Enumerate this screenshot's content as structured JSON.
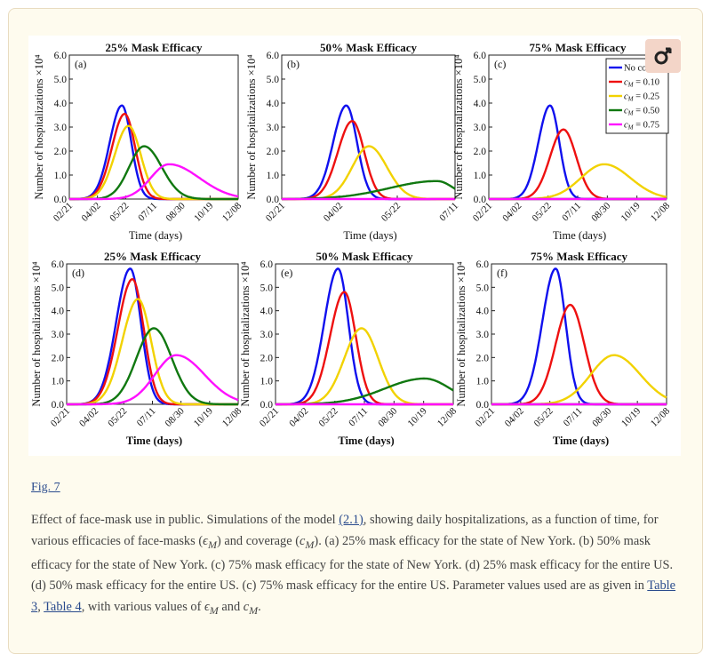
{
  "figure_link": "Fig. 7",
  "caption": {
    "p1": "Effect of face-mask use in public. Simulations of the model ",
    "ref_model": "(2.1)",
    "p2": ", showing daily hospitalizations, as a function of time, for various efficacies of face-masks (",
    "sym_eps": "ϵ",
    "sub_M1": "M",
    "p3": ") and coverage (",
    "sym_c": "c",
    "sub_M2": "M",
    "p4": "). (a) 25% mask efficacy for the state of New York. (b) 50% mask efficacy for the state of New York. (c) 75% mask efficacy for the state of New York. (d) 25% mask efficacy for the entire US. (d) 50% mask efficacy for the entire US. (c) 75% mask efficacy for the entire US. Parameter values used are as given in ",
    "ref_table3": "Table 3",
    "sep": ", ",
    "ref_table4": "Table 4",
    "p5": ", with various values of ",
    "sym_eps2": "ϵ",
    "sub_M3": "M",
    "p6": " and ",
    "sym_c2": "c",
    "sub_M4": "M",
    "p7": "."
  },
  "colors": {
    "no_coverage": "#1010ee",
    "cM_0.10": "#ee1010",
    "cM_0.25": "#f2d200",
    "cM_0.50": "#107810",
    "cM_0.75": "#ff10ff"
  },
  "legend": {
    "entries": [
      "No cover",
      "c_M = 0.10",
      "c_M = 0.25",
      "c_M = 0.50",
      "c_M = 0.75"
    ],
    "display": [
      {
        "label": "No cover",
        "color": "#1010ee",
        "math": false
      },
      {
        "label": "= 0.10",
        "color": "#ee1010",
        "math": true
      },
      {
        "label": "= 0.25",
        "color": "#f2d200",
        "math": true
      },
      {
        "label": "= 0.50",
        "color": "#107810",
        "math": true
      },
      {
        "label": "= 0.75",
        "color": "#ff10ff",
        "math": true
      }
    ]
  },
  "chart_data": [
    {
      "panel": "(a)",
      "type": "line",
      "title": "25% Mask Efficacy",
      "xlabel": "Time (days)",
      "ylabel": "Number of hospitalizations ×10⁴",
      "xticks": [
        "02/21",
        "04/02",
        "05/22",
        "07/11",
        "08/30",
        "10/19",
        "12/08"
      ],
      "xlim": [
        0,
        305
      ],
      "ylim": [
        0,
        6
      ],
      "yticks": [
        "0.0",
        "1.0",
        "2.0",
        "3.0",
        "4.0",
        "5.0",
        "6.0"
      ],
      "x_units": "days since 02/21",
      "series": [
        {
          "name": "No cover",
          "peak_day": 95,
          "peak": 3.9,
          "rise_width": 22,
          "fall_width": 17
        },
        {
          "name": "c_M = 0.10",
          "peak_day": 100,
          "peak": 3.55,
          "rise_width": 23,
          "fall_width": 19
        },
        {
          "name": "c_M = 0.25",
          "peak_day": 107,
          "peak": 3.05,
          "rise_width": 25,
          "fall_width": 22
        },
        {
          "name": "c_M = 0.50",
          "peak_day": 135,
          "peak": 2.2,
          "rise_width": 27,
          "fall_width": 32
        },
        {
          "name": "c_M = 0.75",
          "peak_day": 180,
          "peak": 1.45,
          "rise_width": 33,
          "fall_width": 55
        }
      ]
    },
    {
      "panel": "(b)",
      "type": "line",
      "title": "50% Mask Efficacy",
      "xlabel": "Time (days)",
      "ylabel": "Number of hospitalizations ×10⁴",
      "xticks": [
        "02/21",
        "04/02",
        "05/22",
        "07/11"
      ],
      "xlim": [
        0,
        145
      ],
      "ylim": [
        0,
        6
      ],
      "yticks": [
        "0.0",
        "1.0",
        "2.0",
        "3.0",
        "4.0",
        "5.0",
        "6.0"
      ],
      "x_units": "days since 02/21",
      "series": [
        {
          "name": "No cover",
          "peak_day": 54,
          "peak": 3.9,
          "rise_width": 11,
          "fall_width": 9
        },
        {
          "name": "c_M = 0.10",
          "peak_day": 59,
          "peak": 3.25,
          "rise_width": 12,
          "fall_width": 10
        },
        {
          "name": "c_M = 0.25",
          "peak_day": 73,
          "peak": 2.2,
          "rise_width": 14,
          "fall_width": 15
        },
        {
          "name": "c_M = 0.50",
          "peak_day": 130,
          "peak": 0.75,
          "rise_width": 40,
          "fall_width": 14
        },
        {
          "name": "c_M = 0.75",
          "peak_day": 0,
          "peak": 0.0,
          "rise_width": 10,
          "fall_width": 10
        }
      ]
    },
    {
      "panel": "(c)",
      "type": "line",
      "title": "75% Mask Efficacy",
      "xlabel": "Time (days)",
      "ylabel": "Number of hospitalizations ×10⁴",
      "xticks": [
        "02/21",
        "04/02",
        "05/22",
        "07/11",
        "08/30",
        "10/19",
        "12/08"
      ],
      "xlim": [
        0,
        305
      ],
      "ylim": [
        0,
        6
      ],
      "yticks": [
        "0.0",
        "1.0",
        "2.0",
        "3.0",
        "4.0",
        "5.0",
        "6.0"
      ],
      "x_units": "days since 02/21",
      "series": [
        {
          "name": "No cover",
          "peak_day": 105,
          "peak": 3.9,
          "rise_width": 20,
          "fall_width": 16
        },
        {
          "name": "c_M = 0.10",
          "peak_day": 128,
          "peak": 2.9,
          "rise_width": 23,
          "fall_width": 22
        },
        {
          "name": "c_M = 0.25",
          "peak_day": 198,
          "peak": 1.45,
          "rise_width": 40,
          "fall_width": 45
        },
        {
          "name": "c_M = 0.50",
          "peak_day": 0,
          "peak": 0.0,
          "rise_width": 10,
          "fall_width": 10
        },
        {
          "name": "c_M = 0.75",
          "peak_day": 0,
          "peak": 0.0,
          "rise_width": 10,
          "fall_width": 10
        }
      ]
    },
    {
      "panel": "(d)",
      "type": "line",
      "title": "25% Mask Efficacy",
      "xlabel": "Time (days)",
      "ylabel": "Number of hospitalizations ×10⁴",
      "xticks": [
        "02/21",
        "04/02",
        "05/22",
        "07/11",
        "08/30",
        "10/19",
        "12/08"
      ],
      "xlim": [
        0,
        305
      ],
      "ylim": [
        0,
        6
      ],
      "yticks": [
        "0.0",
        "1.0",
        "2.0",
        "3.0",
        "4.0",
        "5.0",
        "6.0"
      ],
      "x_units": "days since 02/21",
      "series": [
        {
          "name": "No cover",
          "peak_day": 113,
          "peak": 5.8,
          "rise_width": 25,
          "fall_width": 19
        },
        {
          "name": "c_M = 0.10",
          "peak_day": 117,
          "peak": 5.35,
          "rise_width": 26,
          "fall_width": 20
        },
        {
          "name": "c_M = 0.25",
          "peak_day": 127,
          "peak": 4.5,
          "rise_width": 28,
          "fall_width": 23
        },
        {
          "name": "c_M = 0.50",
          "peak_day": 155,
          "peak": 3.25,
          "rise_width": 31,
          "fall_width": 32
        },
        {
          "name": "c_M = 0.75",
          "peak_day": 195,
          "peak": 2.1,
          "rise_width": 38,
          "fall_width": 50
        }
      ]
    },
    {
      "panel": "(e)",
      "type": "line",
      "title": "50% Mask Efficacy",
      "xlabel": "Time (days)",
      "ylabel": "Number of hospitalizations ×10⁴",
      "xticks": [
        "02/21",
        "04/02",
        "05/22",
        "07/11",
        "08/30",
        "10/19",
        "12/08"
      ],
      "xlim": [
        0,
        310
      ],
      "ylim": [
        0,
        6
      ],
      "yticks": [
        "0.0",
        "1.0",
        "2.0",
        "3.0",
        "4.0",
        "5.0",
        "6.0"
      ],
      "x_units": "days since 02/21",
      "series": [
        {
          "name": "No cover",
          "peak_day": 109,
          "peak": 5.8,
          "rise_width": 24,
          "fall_width": 18
        },
        {
          "name": "c_M = 0.10",
          "peak_day": 120,
          "peak": 4.8,
          "rise_width": 25,
          "fall_width": 20
        },
        {
          "name": "c_M = 0.25",
          "peak_day": 150,
          "peak": 3.25,
          "rise_width": 30,
          "fall_width": 29
        },
        {
          "name": "c_M = 0.50",
          "peak_day": 260,
          "peak": 1.1,
          "rise_width": 70,
          "fall_width": 45
        },
        {
          "name": "c_M = 0.75",
          "peak_day": 0,
          "peak": 0.0,
          "rise_width": 10,
          "fall_width": 10
        }
      ]
    },
    {
      "panel": "(f)",
      "type": "line",
      "title": "75% Mask Efficacy",
      "xlabel": "Time (days)",
      "ylabel": "Number of hospitalizations ×10⁴",
      "xticks": [
        "02/21",
        "04/02",
        "05/22",
        "07/11",
        "08/30",
        "10/19",
        "12/08"
      ],
      "xlim": [
        0,
        300
      ],
      "ylim": [
        0,
        6
      ],
      "yticks": [
        "0.0",
        "1.0",
        "2.0",
        "3.0",
        "4.0",
        "5.0",
        "6.0"
      ],
      "x_units": "days since 02/21",
      "series": [
        {
          "name": "No cover",
          "peak_day": 110,
          "peak": 5.8,
          "rise_width": 23,
          "fall_width": 17
        },
        {
          "name": "c_M = 0.10",
          "peak_day": 135,
          "peak": 4.25,
          "rise_width": 25,
          "fall_width": 24
        },
        {
          "name": "c_M = 0.25",
          "peak_day": 210,
          "peak": 2.1,
          "rise_width": 40,
          "fall_width": 45
        },
        {
          "name": "c_M = 0.50",
          "peak_day": 0,
          "peak": 0.0,
          "rise_width": 10,
          "fall_width": 10
        },
        {
          "name": "c_M = 0.75",
          "peak_day": 0,
          "peak": 0.0,
          "rise_width": 10,
          "fall_width": 10
        }
      ]
    }
  ]
}
